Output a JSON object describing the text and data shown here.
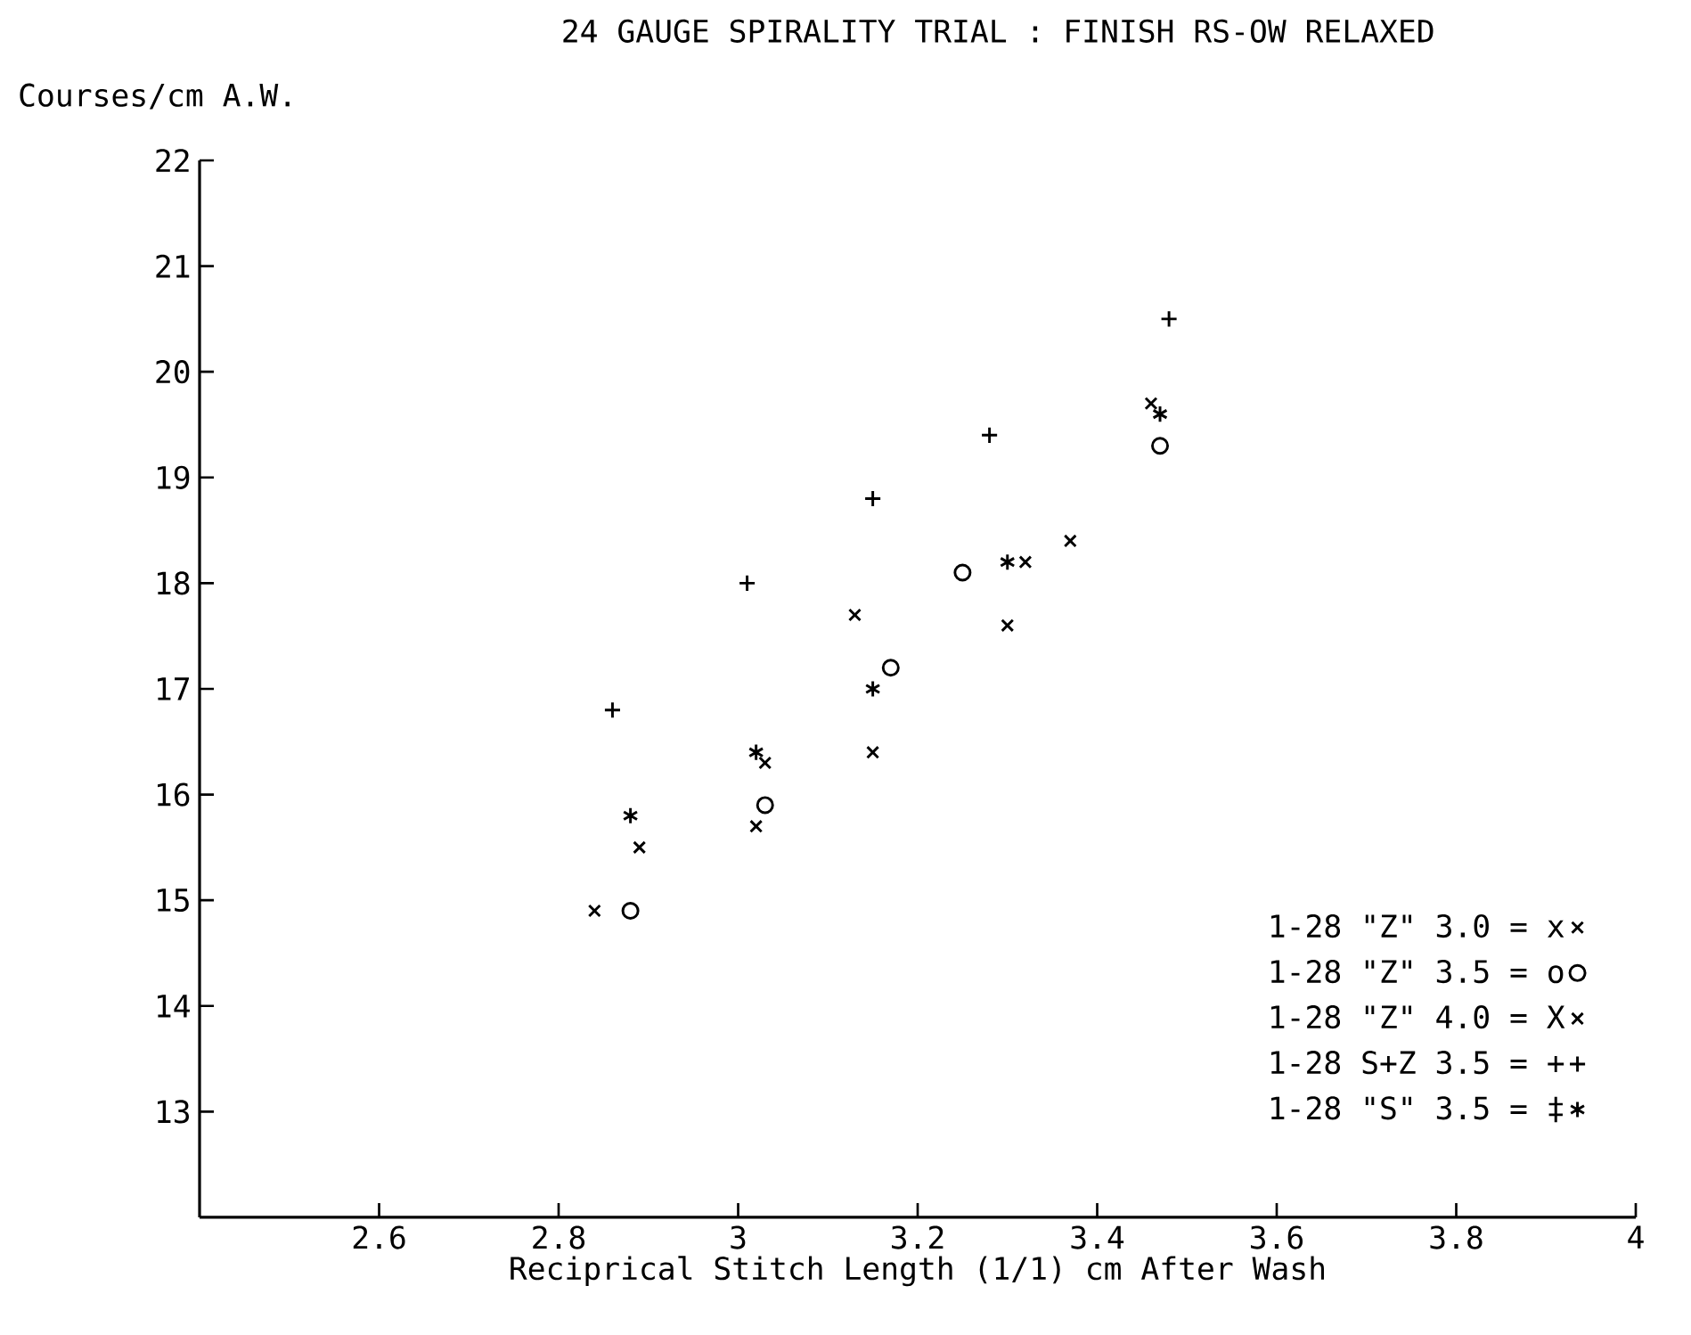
{
  "chart_data": {
    "type": "scatter",
    "title": "24 GAUGE SPIRALITY TRIAL : FINISH RS-OW RELAXED",
    "xlabel": "Reciprical Stitch Length (1/1) cm After Wash",
    "ylabel": "Courses/cm A.W.",
    "xlim": [
      2.4,
      4
    ],
    "ylim": [
      12,
      22
    ],
    "xticks": [
      2.6,
      2.8,
      3,
      3.2,
      3.4,
      3.6,
      3.8,
      4
    ],
    "yticks": [
      13,
      14,
      15,
      16,
      17,
      18,
      19,
      20,
      21,
      22
    ],
    "legend": "bottom right",
    "series": [
      {
        "name": "1-28 \"Z\" 3.0 = x",
        "color": "#000000",
        "marker": "cross",
        "x": [
          2.84,
          3.02,
          3.15,
          3.3,
          3.37
        ],
        "values": [
          14.9,
          15.7,
          16.4,
          17.6,
          18.4
        ]
      },
      {
        "name": "1-28 \"Z\" 3.5 = o",
        "color": "#000000",
        "marker": "circle",
        "x": [
          2.88,
          3.03,
          3.17,
          3.25,
          3.47
        ],
        "values": [
          14.9,
          15.9,
          17.2,
          18.1,
          19.3
        ]
      },
      {
        "name": "1-28 \"Z\" 4.0 = X",
        "color": "#000000",
        "marker": "cross",
        "x": [
          2.89,
          3.03,
          3.13,
          3.32,
          3.46
        ],
        "values": [
          15.5,
          16.3,
          17.7,
          18.2,
          19.7
        ]
      },
      {
        "name": "1-28 S+Z 3.5 = +",
        "color": "#000000",
        "marker": "plus",
        "x": [
          2.86,
          3.01,
          3.15,
          3.28,
          3.48
        ],
        "values": [
          16.8,
          18.0,
          18.8,
          19.4,
          20.5
        ]
      },
      {
        "name": "1-28 \"S\" 3.5 = ‡",
        "color": "#000000",
        "x": [
          2.88,
          3.02,
          3.15,
          3.3,
          3.47
        ],
        "values": [
          15.8,
          16.4,
          17.0,
          18.2,
          19.6
        ]
      }
    ]
  }
}
